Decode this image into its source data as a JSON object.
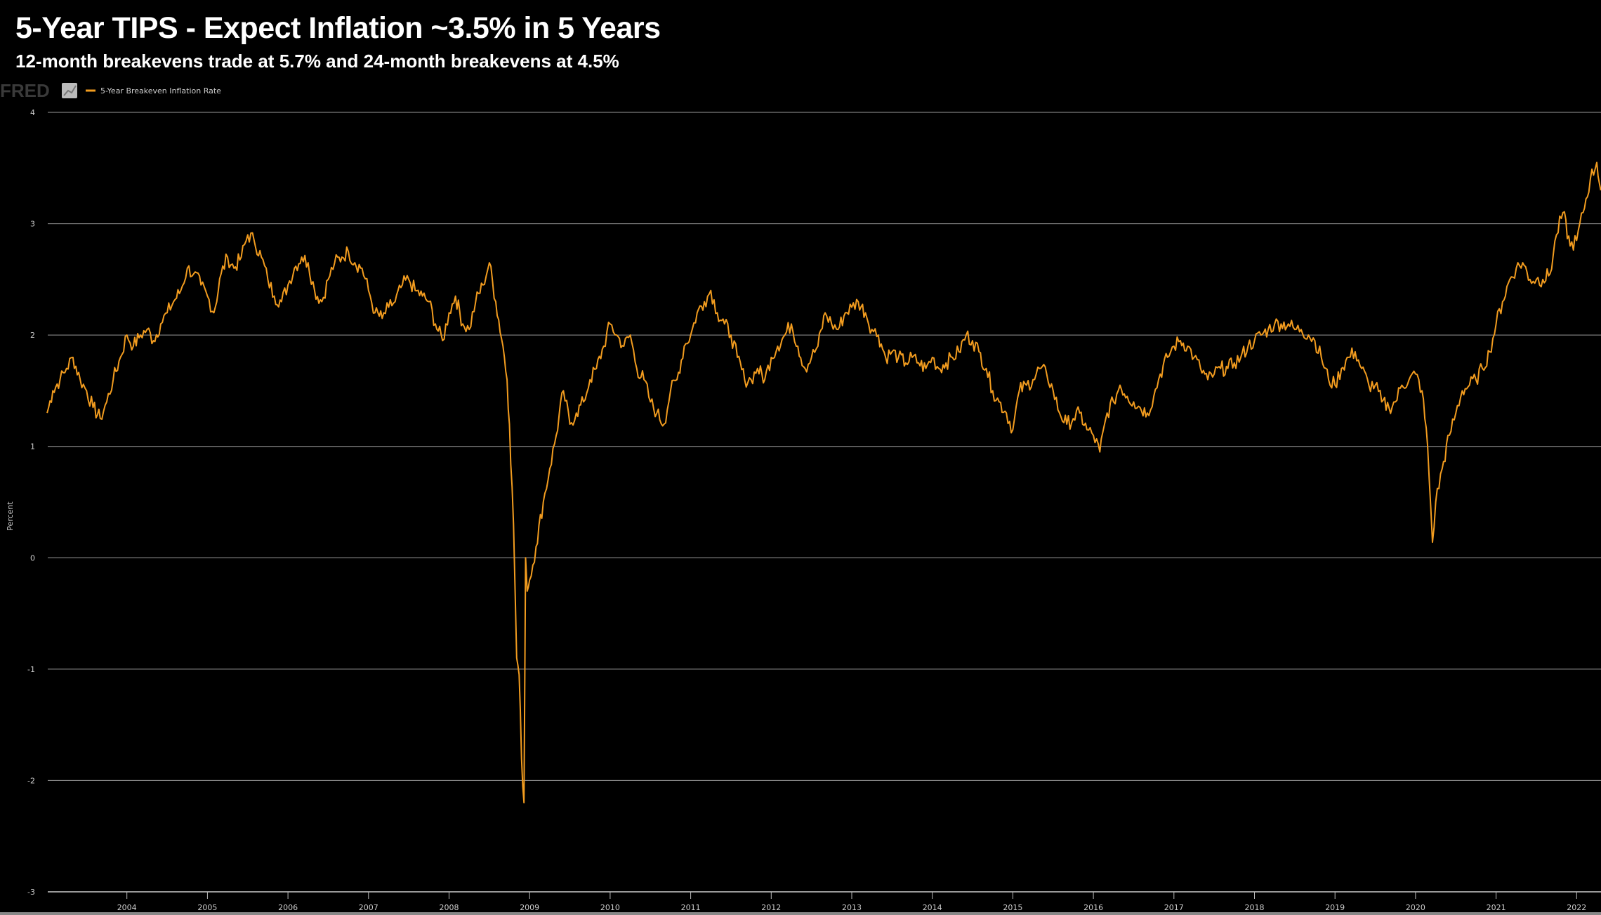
{
  "header": {
    "title": "5-Year TIPS - Expect Inflation ~3.5% in 5 Years",
    "subtitle": "12-month breakevens trade at 5.7% and 24-month breakevens at 4.5%"
  },
  "logo": {
    "text": "FRED",
    "icon": "chart-line-icon"
  },
  "colors": {
    "series": "#f29c1f",
    "grid": "#9a9a9a",
    "background": "#000000"
  },
  "chart_data": {
    "type": "line",
    "title": "5-Year TIPS - Expect Inflation ~3.5% in 5 Years",
    "xlabel": "",
    "ylabel": "Percent",
    "xlim": [
      2003.0,
      2022.35
    ],
    "ylim": [
      -3,
      4
    ],
    "yticks": [
      4,
      3,
      2,
      1,
      0,
      -1,
      -2,
      -3
    ],
    "xticks": [
      2004,
      2005,
      2006,
      2007,
      2008,
      2009,
      2010,
      2011,
      2012,
      2013,
      2014,
      2015,
      2016,
      2017,
      2018,
      2019,
      2020,
      2021,
      2022
    ],
    "grid": true,
    "legend_position": "top-left",
    "series": [
      {
        "name": "5-Year Breakeven Inflation Rate",
        "points": [
          [
            2003.01,
            1.3
          ],
          [
            2003.08,
            1.5
          ],
          [
            2003.17,
            1.6
          ],
          [
            2003.25,
            1.7
          ],
          [
            2003.33,
            1.8
          ],
          [
            2003.42,
            1.6
          ],
          [
            2003.5,
            1.5
          ],
          [
            2003.58,
            1.35
          ],
          [
            2003.67,
            1.25
          ],
          [
            2003.75,
            1.4
          ],
          [
            2003.83,
            1.6
          ],
          [
            2003.92,
            1.8
          ],
          [
            2004.0,
            2.0
          ],
          [
            2004.08,
            1.9
          ],
          [
            2004.17,
            2.0
          ],
          [
            2004.25,
            2.05
          ],
          [
            2004.33,
            1.95
          ],
          [
            2004.42,
            2.1
          ],
          [
            2004.5,
            2.2
          ],
          [
            2004.58,
            2.3
          ],
          [
            2004.67,
            2.4
          ],
          [
            2004.75,
            2.6
          ],
          [
            2004.83,
            2.55
          ],
          [
            2004.92,
            2.45
          ],
          [
            2005.0,
            2.35
          ],
          [
            2005.08,
            2.2
          ],
          [
            2005.17,
            2.55
          ],
          [
            2005.25,
            2.7
          ],
          [
            2005.33,
            2.6
          ],
          [
            2005.42,
            2.7
          ],
          [
            2005.5,
            2.9
          ],
          [
            2005.58,
            2.85
          ],
          [
            2005.67,
            2.7
          ],
          [
            2005.75,
            2.5
          ],
          [
            2005.83,
            2.35
          ],
          [
            2005.92,
            2.3
          ],
          [
            2006.0,
            2.45
          ],
          [
            2006.08,
            2.6
          ],
          [
            2006.17,
            2.7
          ],
          [
            2006.25,
            2.65
          ],
          [
            2006.33,
            2.4
          ],
          [
            2006.42,
            2.3
          ],
          [
            2006.5,
            2.5
          ],
          [
            2006.58,
            2.65
          ],
          [
            2006.67,
            2.7
          ],
          [
            2006.75,
            2.75
          ],
          [
            2006.83,
            2.65
          ],
          [
            2006.92,
            2.6
          ],
          [
            2007.0,
            2.4
          ],
          [
            2007.08,
            2.2
          ],
          [
            2007.17,
            2.15
          ],
          [
            2007.25,
            2.25
          ],
          [
            2007.33,
            2.3
          ],
          [
            2007.42,
            2.45
          ],
          [
            2007.5,
            2.5
          ],
          [
            2007.58,
            2.4
          ],
          [
            2007.67,
            2.35
          ],
          [
            2007.75,
            2.3
          ],
          [
            2007.83,
            2.1
          ],
          [
            2007.92,
            1.95
          ],
          [
            2008.0,
            2.2
          ],
          [
            2008.08,
            2.35
          ],
          [
            2008.17,
            2.1
          ],
          [
            2008.25,
            2.05
          ],
          [
            2008.33,
            2.3
          ],
          [
            2008.42,
            2.45
          ],
          [
            2008.5,
            2.65
          ],
          [
            2008.58,
            2.3
          ],
          [
            2008.67,
            1.9
          ],
          [
            2008.72,
            1.6
          ],
          [
            2008.75,
            1.2
          ],
          [
            2008.8,
            0.3
          ],
          [
            2008.84,
            -0.9
          ],
          [
            2008.87,
            -1.05
          ],
          [
            2008.9,
            -1.8
          ],
          [
            2008.93,
            -2.2
          ],
          [
            2008.95,
            0.0
          ],
          [
            2008.97,
            -0.3
          ],
          [
            2009.0,
            -0.2
          ],
          [
            2009.08,
            0.1
          ],
          [
            2009.17,
            0.5
          ],
          [
            2009.25,
            0.8
          ],
          [
            2009.33,
            1.1
          ],
          [
            2009.42,
            1.5
          ],
          [
            2009.5,
            1.2
          ],
          [
            2009.58,
            1.3
          ],
          [
            2009.67,
            1.4
          ],
          [
            2009.75,
            1.6
          ],
          [
            2009.83,
            1.7
          ],
          [
            2009.92,
            1.9
          ],
          [
            2010.0,
            2.1
          ],
          [
            2010.08,
            2.0
          ],
          [
            2010.17,
            1.9
          ],
          [
            2010.25,
            2.0
          ],
          [
            2010.33,
            1.7
          ],
          [
            2010.42,
            1.6
          ],
          [
            2010.5,
            1.4
          ],
          [
            2010.58,
            1.3
          ],
          [
            2010.67,
            1.2
          ],
          [
            2010.75,
            1.5
          ],
          [
            2010.83,
            1.6
          ],
          [
            2010.92,
            1.9
          ],
          [
            2011.0,
            2.0
          ],
          [
            2011.08,
            2.2
          ],
          [
            2011.17,
            2.3
          ],
          [
            2011.25,
            2.4
          ],
          [
            2011.33,
            2.2
          ],
          [
            2011.42,
            2.1
          ],
          [
            2011.5,
            2.0
          ],
          [
            2011.58,
            1.8
          ],
          [
            2011.67,
            1.6
          ],
          [
            2011.75,
            1.6
          ],
          [
            2011.83,
            1.7
          ],
          [
            2011.92,
            1.6
          ],
          [
            2012.0,
            1.8
          ],
          [
            2012.08,
            1.9
          ],
          [
            2012.17,
            2.0
          ],
          [
            2012.25,
            2.1
          ],
          [
            2012.33,
            1.9
          ],
          [
            2012.42,
            1.7
          ],
          [
            2012.5,
            1.8
          ],
          [
            2012.58,
            1.9
          ],
          [
            2012.67,
            2.2
          ],
          [
            2012.75,
            2.1
          ],
          [
            2012.83,
            2.05
          ],
          [
            2012.92,
            2.2
          ],
          [
            2013.0,
            2.25
          ],
          [
            2013.08,
            2.3
          ],
          [
            2013.17,
            2.2
          ],
          [
            2013.25,
            2.05
          ],
          [
            2013.33,
            2.0
          ],
          [
            2013.42,
            1.8
          ],
          [
            2013.5,
            1.85
          ],
          [
            2013.58,
            1.8
          ],
          [
            2013.67,
            1.75
          ],
          [
            2013.75,
            1.8
          ],
          [
            2013.83,
            1.75
          ],
          [
            2013.92,
            1.7
          ],
          [
            2014.0,
            1.8
          ],
          [
            2014.08,
            1.7
          ],
          [
            2014.17,
            1.75
          ],
          [
            2014.25,
            1.8
          ],
          [
            2014.33,
            1.85
          ],
          [
            2014.42,
            2.0
          ],
          [
            2014.5,
            1.95
          ],
          [
            2014.58,
            1.85
          ],
          [
            2014.67,
            1.7
          ],
          [
            2014.75,
            1.5
          ],
          [
            2014.83,
            1.4
          ],
          [
            2014.92,
            1.3
          ],
          [
            2015.0,
            1.15
          ],
          [
            2015.08,
            1.5
          ],
          [
            2015.17,
            1.55
          ],
          [
            2015.25,
            1.6
          ],
          [
            2015.33,
            1.7
          ],
          [
            2015.42,
            1.65
          ],
          [
            2015.5,
            1.5
          ],
          [
            2015.58,
            1.3
          ],
          [
            2015.67,
            1.2
          ],
          [
            2015.75,
            1.25
          ],
          [
            2015.83,
            1.3
          ],
          [
            2015.92,
            1.15
          ],
          [
            2016.0,
            1.1
          ],
          [
            2016.08,
            0.95
          ],
          [
            2016.17,
            1.3
          ],
          [
            2016.25,
            1.4
          ],
          [
            2016.33,
            1.55
          ],
          [
            2016.42,
            1.45
          ],
          [
            2016.5,
            1.4
          ],
          [
            2016.58,
            1.35
          ],
          [
            2016.67,
            1.3
          ],
          [
            2016.75,
            1.45
          ],
          [
            2016.83,
            1.65
          ],
          [
            2016.92,
            1.8
          ],
          [
            2017.0,
            1.9
          ],
          [
            2017.08,
            1.95
          ],
          [
            2017.17,
            1.9
          ],
          [
            2017.25,
            1.8
          ],
          [
            2017.33,
            1.7
          ],
          [
            2017.42,
            1.6
          ],
          [
            2017.5,
            1.65
          ],
          [
            2017.58,
            1.7
          ],
          [
            2017.67,
            1.7
          ],
          [
            2017.75,
            1.75
          ],
          [
            2017.83,
            1.8
          ],
          [
            2017.92,
            1.9
          ],
          [
            2018.0,
            1.95
          ],
          [
            2018.08,
            2.0
          ],
          [
            2018.17,
            2.05
          ],
          [
            2018.25,
            2.1
          ],
          [
            2018.33,
            2.1
          ],
          [
            2018.42,
            2.1
          ],
          [
            2018.5,
            2.05
          ],
          [
            2018.58,
            2.05
          ],
          [
            2018.67,
            2.0
          ],
          [
            2018.75,
            1.95
          ],
          [
            2018.83,
            1.8
          ],
          [
            2018.92,
            1.6
          ],
          [
            2019.0,
            1.55
          ],
          [
            2019.08,
            1.7
          ],
          [
            2019.17,
            1.8
          ],
          [
            2019.25,
            1.85
          ],
          [
            2019.33,
            1.7
          ],
          [
            2019.42,
            1.55
          ],
          [
            2019.5,
            1.55
          ],
          [
            2019.58,
            1.4
          ],
          [
            2019.67,
            1.35
          ],
          [
            2019.75,
            1.4
          ],
          [
            2019.83,
            1.55
          ],
          [
            2019.92,
            1.6
          ],
          [
            2020.0,
            1.65
          ],
          [
            2020.08,
            1.5
          ],
          [
            2020.15,
            1.0
          ],
          [
            2020.21,
            0.14
          ],
          [
            2020.25,
            0.5
          ],
          [
            2020.33,
            0.8
          ],
          [
            2020.42,
            1.1
          ],
          [
            2020.5,
            1.3
          ],
          [
            2020.58,
            1.5
          ],
          [
            2020.67,
            1.55
          ],
          [
            2020.75,
            1.6
          ],
          [
            2020.83,
            1.7
          ],
          [
            2020.92,
            1.85
          ],
          [
            2021.0,
            2.1
          ],
          [
            2021.08,
            2.3
          ],
          [
            2021.17,
            2.5
          ],
          [
            2021.25,
            2.6
          ],
          [
            2021.33,
            2.65
          ],
          [
            2021.42,
            2.5
          ],
          [
            2021.5,
            2.5
          ],
          [
            2021.58,
            2.5
          ],
          [
            2021.67,
            2.55
          ],
          [
            2021.75,
            2.9
          ],
          [
            2021.83,
            3.1
          ],
          [
            2021.92,
            2.8
          ],
          [
            2022.0,
            2.85
          ],
          [
            2022.08,
            3.1
          ],
          [
            2022.17,
            3.4
          ],
          [
            2022.25,
            3.55
          ],
          [
            2022.3,
            3.3
          ]
        ]
      }
    ]
  }
}
